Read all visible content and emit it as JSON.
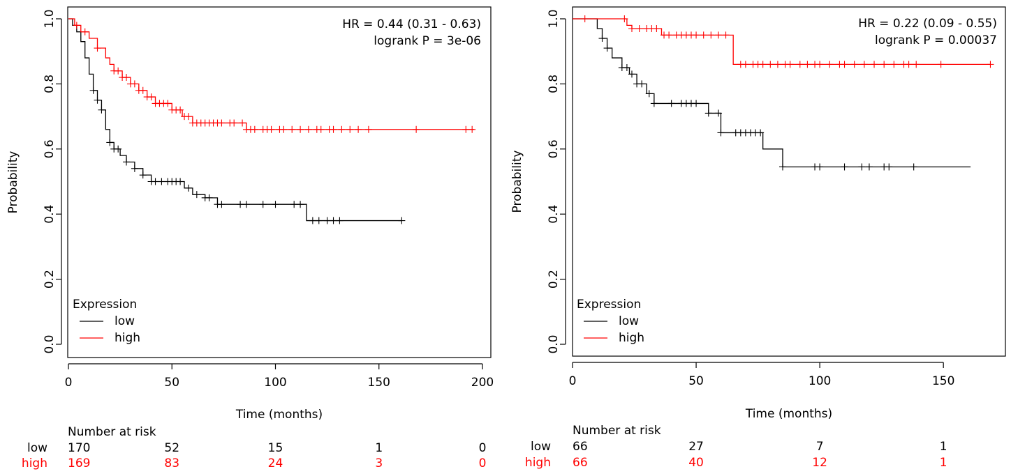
{
  "chart_data": [
    {
      "type": "line",
      "subtype": "kaplan-meier",
      "title": "",
      "xlabel": "Time (months)",
      "ylabel": "Probability",
      "xlim": [
        0,
        200
      ],
      "ylim": [
        0,
        1
      ],
      "xticks": [
        0,
        50,
        100,
        150,
        200
      ],
      "yticks": [
        0.0,
        0.2,
        0.4,
        0.6,
        0.8,
        1.0
      ],
      "x_tick_labels": [
        "0",
        "50",
        "100",
        "150",
        "200"
      ],
      "y_tick_labels": [
        "0.0",
        "0.2",
        "0.4",
        "0.6",
        "0.8",
        "1.0"
      ],
      "grid": false,
      "annotation_lines": [
        "HR = 0.44 (0.31 - 0.63)",
        "logrank P = 3e-06"
      ],
      "legend": {
        "title": "Expression",
        "position": "bottom-left",
        "entries": [
          "low",
          "high"
        ]
      },
      "series": [
        {
          "name": "low",
          "color": "#000000",
          "steps": [
            [
              0,
              1.0
            ],
            [
              2,
              0.98
            ],
            [
              4,
              0.96
            ],
            [
              6,
              0.93
            ],
            [
              8,
              0.88
            ],
            [
              10,
              0.83
            ],
            [
              12,
              0.78
            ],
            [
              14,
              0.75
            ],
            [
              16,
              0.72
            ],
            [
              18,
              0.66
            ],
            [
              20,
              0.62
            ],
            [
              22,
              0.6
            ],
            [
              25,
              0.58
            ],
            [
              28,
              0.56
            ],
            [
              32,
              0.54
            ],
            [
              36,
              0.52
            ],
            [
              40,
              0.5
            ],
            [
              48,
              0.5
            ],
            [
              56,
              0.48
            ],
            [
              60,
              0.46
            ],
            [
              66,
              0.45
            ],
            [
              72,
              0.43
            ],
            [
              114,
              0.43
            ],
            [
              115,
              0.38
            ],
            [
              161,
              0.38
            ]
          ],
          "censor": [
            12,
            14,
            16,
            20,
            22,
            24,
            28,
            32,
            36,
            40,
            42,
            45,
            48,
            50,
            52,
            54,
            58,
            62,
            66,
            68,
            72,
            74,
            83,
            86,
            94,
            100,
            109,
            112,
            118,
            121,
            125,
            128,
            131,
            161
          ]
        },
        {
          "name": "high",
          "color": "#ff0000",
          "steps": [
            [
              0,
              1.0
            ],
            [
              3,
              0.98
            ],
            [
              6,
              0.96
            ],
            [
              10,
              0.94
            ],
            [
              14,
              0.91
            ],
            [
              18,
              0.88
            ],
            [
              20,
              0.86
            ],
            [
              22,
              0.84
            ],
            [
              26,
              0.82
            ],
            [
              30,
              0.8
            ],
            [
              34,
              0.78
            ],
            [
              38,
              0.76
            ],
            [
              42,
              0.74
            ],
            [
              50,
              0.72
            ],
            [
              55,
              0.7
            ],
            [
              60,
              0.68
            ],
            [
              85,
              0.68
            ],
            [
              86,
              0.66
            ],
            [
              196,
              0.66
            ]
          ],
          "censor": [
            4,
            8,
            14,
            22,
            24,
            26,
            28,
            30,
            32,
            34,
            36,
            38,
            40,
            42,
            44,
            46,
            48,
            50,
            52,
            54,
            56,
            58,
            60,
            62,
            64,
            66,
            68,
            70,
            72,
            74,
            78,
            80,
            84,
            86,
            88,
            90,
            94,
            96,
            98,
            102,
            104,
            108,
            112,
            116,
            120,
            122,
            126,
            128,
            132,
            136,
            140,
            145,
            168,
            192,
            195
          ]
        }
      ],
      "risk_table": {
        "header": "Number at risk",
        "times": [
          0,
          50,
          100,
          150,
          200
        ],
        "rows": [
          {
            "label": "low",
            "color": "#000000",
            "values": [
              "170",
              "52",
              "15",
              "1",
              "0"
            ]
          },
          {
            "label": "high",
            "color": "#ff0000",
            "values": [
              "169",
              "83",
              "24",
              "3",
              "0"
            ]
          }
        ]
      }
    },
    {
      "type": "line",
      "subtype": "kaplan-meier",
      "title": "",
      "xlabel": "Time (months)",
      "ylabel": "Probability",
      "xlim": [
        0,
        170
      ],
      "ylim": [
        0,
        1
      ],
      "xticks": [
        0,
        50,
        100,
        150
      ],
      "yticks": [
        0.0,
        0.2,
        0.4,
        0.6,
        0.8,
        1.0
      ],
      "x_tick_labels": [
        "0",
        "50",
        "100",
        "150"
      ],
      "y_tick_labels": [
        "0.0",
        "0.2",
        "0.4",
        "0.6",
        "0.8",
        "1.0"
      ],
      "grid": false,
      "annotation_lines": [
        "HR = 0.22 (0.09 - 0.55)",
        "logrank P = 0.00037"
      ],
      "legend": {
        "title": "Expression",
        "position": "bottom-left",
        "entries": [
          "low",
          "high"
        ]
      },
      "series": [
        {
          "name": "low",
          "color": "#000000",
          "steps": [
            [
              0,
              1.0
            ],
            [
              10,
              0.97
            ],
            [
              12,
              0.94
            ],
            [
              14,
              0.91
            ],
            [
              16,
              0.88
            ],
            [
              20,
              0.85
            ],
            [
              23,
              0.83
            ],
            [
              26,
              0.8
            ],
            [
              30,
              0.77
            ],
            [
              33,
              0.74
            ],
            [
              55,
              0.71
            ],
            [
              60,
              0.65
            ],
            [
              77,
              0.6
            ],
            [
              85,
              0.545
            ],
            [
              161,
              0.545
            ]
          ],
          "censor": [
            12,
            14,
            20,
            22,
            24,
            26,
            28,
            31,
            33,
            40,
            44,
            46,
            48,
            50,
            55,
            59,
            60,
            66,
            68,
            70,
            72,
            74,
            76,
            85,
            98,
            100,
            110,
            117,
            120,
            126,
            128,
            138
          ]
        },
        {
          "name": "high",
          "color": "#ff0000",
          "steps": [
            [
              0,
              1.0
            ],
            [
              22,
              0.98
            ],
            [
              24,
              0.97
            ],
            [
              36,
              0.95
            ],
            [
              64,
              0.95
            ],
            [
              65,
              0.86
            ],
            [
              169,
              0.86
            ]
          ],
          "censor": [
            5,
            21,
            24,
            27,
            30,
            32,
            34,
            37,
            39,
            42,
            44,
            46,
            48,
            50,
            53,
            56,
            59,
            62,
            68,
            70,
            73,
            75,
            77,
            80,
            83,
            86,
            88,
            92,
            95,
            98,
            100,
            104,
            108,
            110,
            114,
            118,
            122,
            126,
            130,
            134,
            136,
            139,
            149,
            169
          ]
        }
      ],
      "risk_table": {
        "header": "Number at risk",
        "times": [
          0,
          50,
          100,
          150
        ],
        "rows": [
          {
            "label": "low",
            "color": "#000000",
            "values": [
              "66",
              "27",
              "7",
              "1"
            ]
          },
          {
            "label": "high",
            "color": "#ff0000",
            "values": [
              "66",
              "40",
              "12",
              "1"
            ]
          }
        ]
      }
    }
  ]
}
